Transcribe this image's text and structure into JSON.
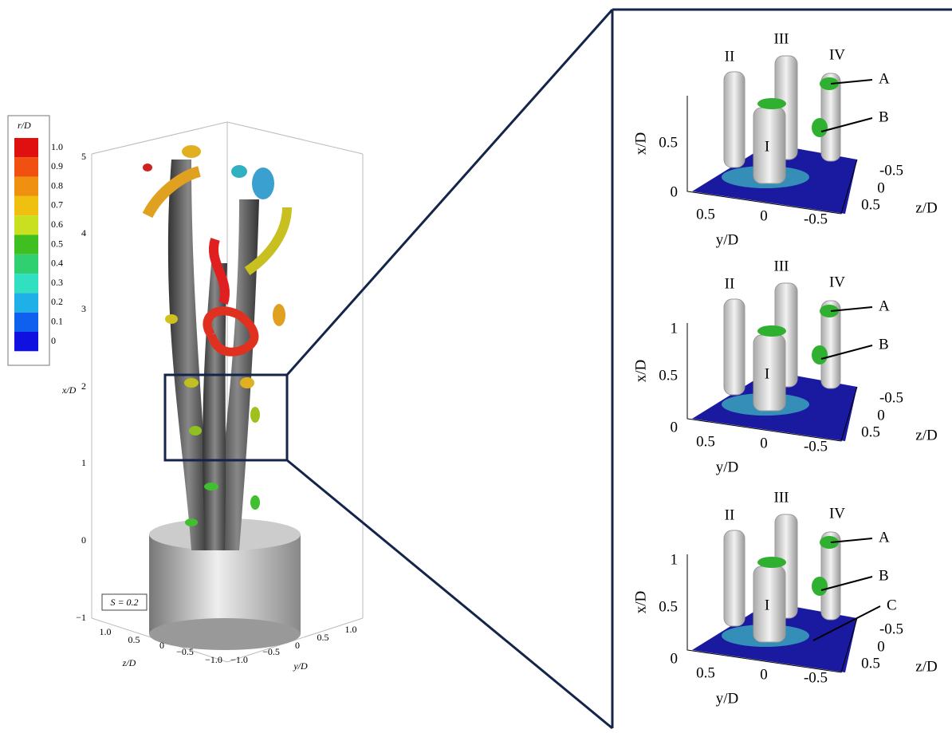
{
  "left_panel": {
    "colorbar": {
      "title": "r/D",
      "labels": [
        "1.0",
        "0.9",
        "0.8",
        "0.7",
        "0.6",
        "0.5",
        "0.4",
        "0.3",
        "0.2",
        "0.1",
        "0"
      ]
    },
    "x_axis": {
      "label": "x/D",
      "ticks": [
        "5",
        "4",
        "3",
        "2",
        "1",
        "0",
        "−1"
      ]
    },
    "z_axis": {
      "label": "z/D",
      "ticks": [
        "1.0",
        "0.5",
        "0",
        "−0.5",
        "−1.0"
      ]
    },
    "y_axis": {
      "label": "y/D",
      "ticks": [
        "−1.0",
        "−0.5",
        "0",
        "0.5",
        "1.0"
      ]
    },
    "annotation": "S = 0.2"
  },
  "right_panels": [
    {
      "x_label": "x/D",
      "x_ticks": [
        "0.5",
        "0"
      ],
      "y_label": "y/D",
      "y_ticks": [
        "0.5",
        "0",
        "-0.5"
      ],
      "z_label": "z/D",
      "z_ticks": [
        "-0.5",
        "0",
        "0.5"
      ],
      "vortex_labels": [
        "II",
        "III",
        "IV",
        "I"
      ],
      "feature_labels": [
        "A",
        "B"
      ]
    },
    {
      "x_label": "x/D",
      "x_ticks": [
        "1",
        "0.5",
        "0"
      ],
      "y_label": "y/D",
      "y_ticks": [
        "0.5",
        "0",
        "-0.5"
      ],
      "z_label": "z/D",
      "z_ticks": [
        "-0.5",
        "0",
        "0.5"
      ],
      "vortex_labels": [
        "II",
        "III",
        "IV",
        "I"
      ],
      "feature_labels": [
        "A",
        "B"
      ]
    },
    {
      "x_label": "x/D",
      "x_ticks": [
        "1",
        "0.5",
        "0"
      ],
      "y_label": "y/D",
      "y_ticks": [
        "0.5",
        "0",
        "-0.5"
      ],
      "z_label": "z/D",
      "z_ticks": [
        "-0.5",
        "0",
        "0.5"
      ],
      "vortex_labels": [
        "II",
        "III",
        "IV",
        "I"
      ],
      "feature_labels": [
        "A",
        "B",
        "C"
      ]
    }
  ]
}
